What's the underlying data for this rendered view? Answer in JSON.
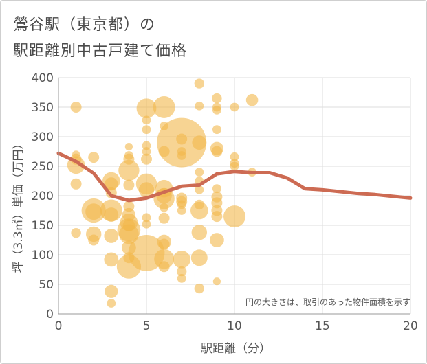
{
  "chart_data": {
    "type": "scatter",
    "title_lines": [
      "鶯谷駅（東京都）の",
      "駅距離別中古戸建て価格"
    ],
    "xlabel": "駅距離（分）",
    "ylabel": "坪（3.3㎡）単価（万円）",
    "note": "円の大きさは、取引のあった物件面積を示す",
    "xlim": [
      0,
      20
    ],
    "ylim": [
      0,
      400
    ],
    "x_ticks": [
      "0",
      "5",
      "10",
      "15",
      "20"
    ],
    "y_ticks": [
      "0",
      "50",
      "100",
      "150",
      "200",
      "250",
      "300",
      "350",
      "400"
    ],
    "grid": true,
    "colors": {
      "bubble": "#f2b84b",
      "trend": "#cd6b53",
      "grid": "#dddddd",
      "axis": "#999999"
    },
    "bubbles": [
      {
        "x": 1,
        "y": 350,
        "s": 1.0
      },
      {
        "x": 1,
        "y": 270,
        "s": 0.7
      },
      {
        "x": 1,
        "y": 262,
        "s": 1.0
      },
      {
        "x": 1,
        "y": 252,
        "s": 1.6
      },
      {
        "x": 1,
        "y": 220,
        "s": 1.0
      },
      {
        "x": 1,
        "y": 137,
        "s": 0.9
      },
      {
        "x": 2,
        "y": 265,
        "s": 1.0
      },
      {
        "x": 2,
        "y": 175,
        "s": 2.2
      },
      {
        "x": 2,
        "y": 173,
        "s": 1.5
      },
      {
        "x": 2,
        "y": 135,
        "s": 1.4
      },
      {
        "x": 2,
        "y": 125,
        "s": 1.0
      },
      {
        "x": 3,
        "y": 225,
        "s": 1.6
      },
      {
        "x": 3,
        "y": 220,
        "s": 1.2
      },
      {
        "x": 3,
        "y": 205,
        "s": 1.0
      },
      {
        "x": 3,
        "y": 175,
        "s": 2.0
      },
      {
        "x": 3,
        "y": 168,
        "s": 1.3
      },
      {
        "x": 3,
        "y": 132,
        "s": 1.3
      },
      {
        "x": 3,
        "y": 92,
        "s": 1.3
      },
      {
        "x": 3,
        "y": 38,
        "s": 1.2
      },
      {
        "x": 3,
        "y": 18,
        "s": 0.8
      },
      {
        "x": 4,
        "y": 283,
        "s": 0.7
      },
      {
        "x": 4,
        "y": 268,
        "s": 0.8
      },
      {
        "x": 4,
        "y": 262,
        "s": 1.0
      },
      {
        "x": 4,
        "y": 243,
        "s": 1.9
      },
      {
        "x": 4,
        "y": 218,
        "s": 1.0
      },
      {
        "x": 4,
        "y": 182,
        "s": 1.0
      },
      {
        "x": 4,
        "y": 168,
        "s": 1.2
      },
      {
        "x": 4,
        "y": 155,
        "s": 1.6
      },
      {
        "x": 4,
        "y": 150,
        "s": 1.1
      },
      {
        "x": 4,
        "y": 142,
        "s": 2.1
      },
      {
        "x": 4,
        "y": 135,
        "s": 1.8
      },
      {
        "x": 4,
        "y": 112,
        "s": 1.3
      },
      {
        "x": 4,
        "y": 95,
        "s": 1.0
      },
      {
        "x": 4,
        "y": 80,
        "s": 2.2
      },
      {
        "x": 5,
        "y": 348,
        "s": 1.8
      },
      {
        "x": 5,
        "y": 328,
        "s": 0.8
      },
      {
        "x": 5,
        "y": 312,
        "s": 0.8
      },
      {
        "x": 5,
        "y": 285,
        "s": 0.8
      },
      {
        "x": 5,
        "y": 275,
        "s": 0.8
      },
      {
        "x": 5,
        "y": 262,
        "s": 1.0
      },
      {
        "x": 5,
        "y": 220,
        "s": 1.9
      },
      {
        "x": 5,
        "y": 210,
        "s": 1.4
      },
      {
        "x": 5,
        "y": 163,
        "s": 0.8
      },
      {
        "x": 5,
        "y": 152,
        "s": 0.8
      },
      {
        "x": 5,
        "y": 103,
        "s": 3.3
      },
      {
        "x": 6,
        "y": 350,
        "s": 2.0
      },
      {
        "x": 6,
        "y": 318,
        "s": 0.8
      },
      {
        "x": 6,
        "y": 275,
        "s": 1.0
      },
      {
        "x": 6,
        "y": 212,
        "s": 1.6
      },
      {
        "x": 6,
        "y": 200,
        "s": 1.4
      },
      {
        "x": 6,
        "y": 195,
        "s": 1.9
      },
      {
        "x": 6,
        "y": 180,
        "s": 0.8
      },
      {
        "x": 6,
        "y": 162,
        "s": 1.0
      },
      {
        "x": 6,
        "y": 122,
        "s": 1.3
      },
      {
        "x": 6,
        "y": 118,
        "s": 1.0
      },
      {
        "x": 6,
        "y": 93,
        "s": 1.8
      },
      {
        "x": 6,
        "y": 80,
        "s": 1.0
      },
      {
        "x": 7,
        "y": 290,
        "s": 4.5
      },
      {
        "x": 7,
        "y": 296,
        "s": 1.0
      },
      {
        "x": 7,
        "y": 275,
        "s": 0.8
      },
      {
        "x": 7,
        "y": 268,
        "s": 0.8
      },
      {
        "x": 7,
        "y": 196,
        "s": 1.0
      },
      {
        "x": 7,
        "y": 190,
        "s": 1.0
      },
      {
        "x": 7,
        "y": 185,
        "s": 0.8
      },
      {
        "x": 7,
        "y": 175,
        "s": 0.8
      },
      {
        "x": 7,
        "y": 92,
        "s": 1.6
      },
      {
        "x": 7,
        "y": 72,
        "s": 0.9
      },
      {
        "x": 7,
        "y": 60,
        "s": 0.8
      },
      {
        "x": 8,
        "y": 390,
        "s": 0.9
      },
      {
        "x": 8,
        "y": 352,
        "s": 0.8
      },
      {
        "x": 8,
        "y": 290,
        "s": 1.3
      },
      {
        "x": 8,
        "y": 240,
        "s": 0.8
      },
      {
        "x": 8,
        "y": 225,
        "s": 0.8
      },
      {
        "x": 8,
        "y": 210,
        "s": 0.8
      },
      {
        "x": 8,
        "y": 185,
        "s": 0.9
      },
      {
        "x": 8,
        "y": 175,
        "s": 1.6
      },
      {
        "x": 8,
        "y": 138,
        "s": 1.4
      },
      {
        "x": 8,
        "y": 95,
        "s": 1.5
      },
      {
        "x": 8,
        "y": 43,
        "s": 0.9
      },
      {
        "x": 9,
        "y": 365,
        "s": 0.9
      },
      {
        "x": 9,
        "y": 350,
        "s": 0.8
      },
      {
        "x": 9,
        "y": 345,
        "s": 0.8
      },
      {
        "x": 9,
        "y": 312,
        "s": 0.8
      },
      {
        "x": 9,
        "y": 280,
        "s": 1.2
      },
      {
        "x": 9,
        "y": 275,
        "s": 1.0
      },
      {
        "x": 9,
        "y": 212,
        "s": 0.8
      },
      {
        "x": 9,
        "y": 198,
        "s": 1.0
      },
      {
        "x": 9,
        "y": 188,
        "s": 1.0
      },
      {
        "x": 9,
        "y": 175,
        "s": 1.0
      },
      {
        "x": 9,
        "y": 165,
        "s": 1.0
      },
      {
        "x": 9,
        "y": 125,
        "s": 1.3
      },
      {
        "x": 9,
        "y": 55,
        "s": 0.7
      },
      {
        "x": 10,
        "y": 350,
        "s": 0.8
      },
      {
        "x": 10,
        "y": 266,
        "s": 0.8
      },
      {
        "x": 10,
        "y": 255,
        "s": 0.8
      },
      {
        "x": 10,
        "y": 250,
        "s": 0.8
      },
      {
        "x": 10,
        "y": 165,
        "s": 2.0
      },
      {
        "x": 11,
        "y": 362,
        "s": 1.1
      },
      {
        "x": 11,
        "y": 240,
        "s": 0.8
      }
    ],
    "trend": {
      "x": [
        0,
        1,
        2,
        3,
        4,
        5,
        6,
        7,
        8,
        9,
        10,
        11,
        12,
        13,
        14,
        15,
        16,
        17,
        18,
        19,
        20
      ],
      "y": [
        272,
        258,
        238,
        200,
        192,
        196,
        206,
        216,
        218,
        237,
        241,
        239,
        239,
        230,
        212,
        210,
        207,
        204,
        202,
        199,
        196
      ]
    }
  }
}
